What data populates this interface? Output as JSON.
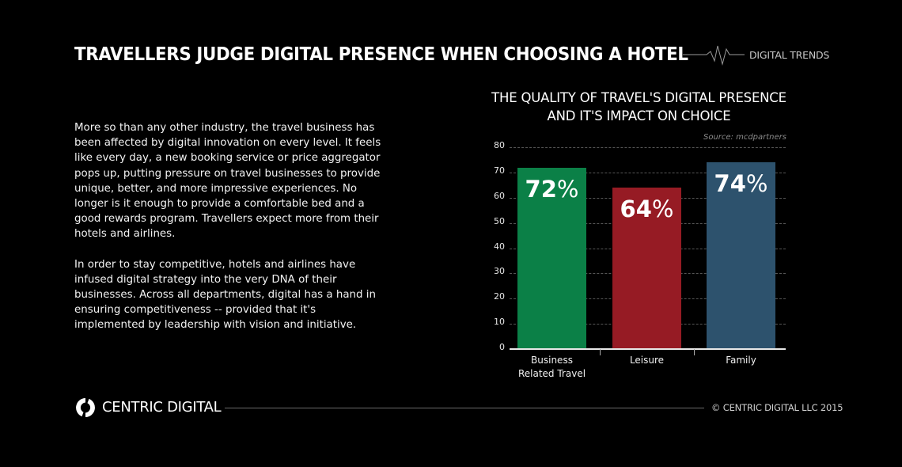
{
  "header": {
    "title": "TRAVELLERS JUDGE DIGITAL PRESENCE WHEN CHOOSING A HOTEL",
    "tag": "DIGITAL TRENDS",
    "pulse_icon": "heartbeat-line-icon"
  },
  "body": {
    "paragraphs": [
      "More so than any other industry, the travel business has been affected by digital innovation on every level. It feels like every day, a new booking service or price aggregator pops up, putting pressure on travel businesses to provide unique, better, and more impressive experiences. No longer is it enough to provide a comfortable bed and a good rewards program. Travellers expect more from their hotels and airlines.",
      "In order to stay competitive, hotels and airlines have infused digital strategy into the very DNA of their businesses. Across all departments, digital has a hand in ensuring competitiveness -- provided that it's implemented by leadership with vision and initiative."
    ]
  },
  "chart_data": {
    "type": "bar",
    "title": "THE QUALITY OF TRAVEL'S DIGITAL PRESENCE AND IT'S IMPACT ON CHOICE",
    "title_lines": [
      "THE QUALITY OF TRAVEL'S DIGITAL PRESENCE",
      "AND IT'S IMPACT ON CHOICE"
    ],
    "source": "Source: mcdpartners",
    "categories": [
      "Business Related Travel",
      "Leisure",
      "Family"
    ],
    "category_lines": [
      [
        "Business",
        "Related Travel"
      ],
      [
        "Leisure"
      ],
      [
        "Family"
      ]
    ],
    "values": [
      72,
      64,
      74
    ],
    "value_labels": [
      {
        "num": "72",
        "unit": "%"
      },
      {
        "num": "64",
        "unit": "%"
      },
      {
        "num": "74",
        "unit": "%"
      }
    ],
    "colors": [
      "#0b8047",
      "#961b24",
      "#2d526d"
    ],
    "xlabel": "",
    "ylabel": "",
    "ylim": [
      0,
      80
    ],
    "yticks": [
      "80",
      "70",
      "60",
      "50",
      "40",
      "30",
      "20",
      "10",
      "0"
    ],
    "grid": true,
    "legend": "none"
  },
  "footer": {
    "brand": "CENTRIC DIGITAL",
    "logo_icon": "centric-cycle-logo-icon",
    "copyright": "© CENTRIC DIGITAL LLC 2015"
  }
}
